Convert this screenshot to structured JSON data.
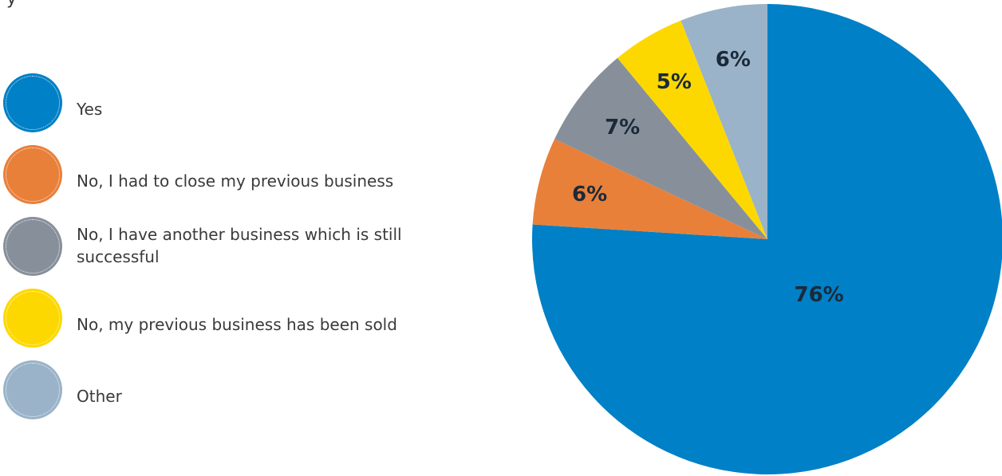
{
  "header": {
    "title_fragment": "y"
  },
  "chart_data": {
    "type": "pie",
    "title": "",
    "legend_position": "left",
    "slices": [
      {
        "label": "Yes",
        "value": 76,
        "display": "76%",
        "color": "#0080c6"
      },
      {
        "label": "No, I had to close my previous business",
        "value": 6,
        "display": "6%",
        "color": "#e8803a"
      },
      {
        "label": "No, I have another business which is still successful",
        "value": 7,
        "display": "7%",
        "color": "#87909a"
      },
      {
        "label": "No, my previous business has been sold",
        "value": 5,
        "display": "5%",
        "color": "#fdd800"
      },
      {
        "label": "Other",
        "value": 6,
        "display": "6%",
        "color": "#9ab3c8"
      }
    ]
  }
}
